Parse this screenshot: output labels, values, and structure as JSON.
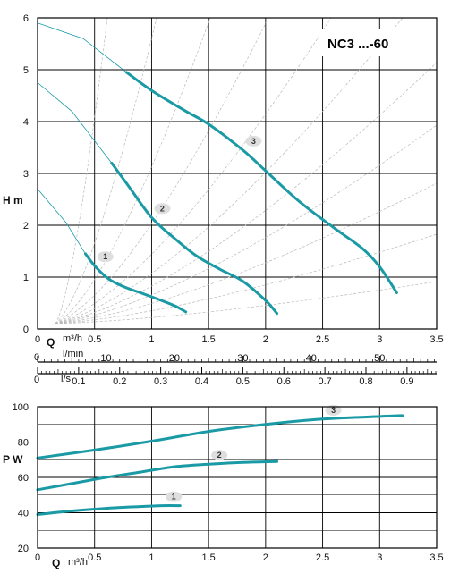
{
  "chart_data": [
    {
      "type": "line",
      "title": "NC3 ...-60",
      "xlabel": "Q",
      "xunit": "m³/h",
      "ylabel": "H m",
      "xlim": [
        0,
        3.5
      ],
      "ylim": [
        0,
        6
      ],
      "x_ticks": [
        "0",
        "0.5",
        "1",
        "1.5",
        "2",
        "2.5",
        "3",
        "3.5"
      ],
      "y_ticks": [
        "0",
        "1",
        "2",
        "3",
        "4",
        "5",
        "6"
      ],
      "secondary_axes": [
        {
          "label": "l/min",
          "lead": "0",
          "ticks": [
            "10",
            "20",
            "30",
            "40",
            "50"
          ],
          "per_m3h": 16.6667
        },
        {
          "label": "l/s",
          "lead": "0",
          "ticks": [
            "0.1",
            "0.2",
            "0.3",
            "0.4",
            "0.5",
            "0.6",
            "0.7",
            "0.8",
            "0.9"
          ],
          "per_m3h": 0.27778
        }
      ],
      "series": [
        {
          "name": "1",
          "color": "#1a9aa5",
          "x": [
            0.42,
            0.5,
            0.62,
            0.75,
            0.9,
            1.05,
            1.2,
            1.3
          ],
          "y": [
            1.45,
            1.22,
            0.97,
            0.82,
            0.7,
            0.58,
            0.45,
            0.33
          ]
        },
        {
          "name": "2",
          "color": "#1a9aa5",
          "x": [
            0.65,
            0.8,
            1.0,
            1.2,
            1.4,
            1.6,
            1.8,
            2.0,
            2.1
          ],
          "y": [
            3.2,
            2.75,
            2.15,
            1.75,
            1.4,
            1.15,
            0.92,
            0.55,
            0.3
          ]
        },
        {
          "name": "3",
          "color": "#1a9aa5",
          "x": [
            0.78,
            1.0,
            1.3,
            1.5,
            1.8,
            2.0,
            2.3,
            2.6,
            2.85,
            3.0,
            3.15
          ],
          "y": [
            4.95,
            4.6,
            4.2,
            3.95,
            3.45,
            3.05,
            2.45,
            1.95,
            1.55,
            1.2,
            0.7
          ]
        }
      ]
    },
    {
      "type": "line",
      "xlabel": "Q",
      "xunit": "m³/h",
      "ylabel": "P W",
      "xlim": [
        0,
        3.5
      ],
      "ylim": [
        20,
        100
      ],
      "x_ticks": [
        "0",
        "0.5",
        "1",
        "1.5",
        "2",
        "2.5",
        "3",
        "3.5"
      ],
      "y_ticks": [
        "20",
        "40",
        "60",
        "80",
        "100"
      ],
      "series": [
        {
          "name": "1",
          "color": "#1a9aa5",
          "x": [
            0,
            0.3,
            0.6,
            0.9,
            1.1,
            1.25
          ],
          "y": [
            39,
            41,
            42.5,
            43.5,
            44,
            44
          ]
        },
        {
          "name": "2",
          "color": "#1a9aa5",
          "x": [
            0,
            0.3,
            0.6,
            0.9,
            1.2,
            1.5,
            1.8,
            2.1
          ],
          "y": [
            53,
            56.5,
            60,
            63,
            66,
            67.5,
            68.5,
            69
          ]
        },
        {
          "name": "3",
          "color": "#1a9aa5",
          "x": [
            0,
            0.5,
            1.0,
            1.5,
            2.0,
            2.5,
            3.0,
            3.2
          ],
          "y": [
            71,
            75.5,
            80.5,
            86,
            90,
            93,
            94.5,
            95
          ]
        }
      ]
    }
  ]
}
